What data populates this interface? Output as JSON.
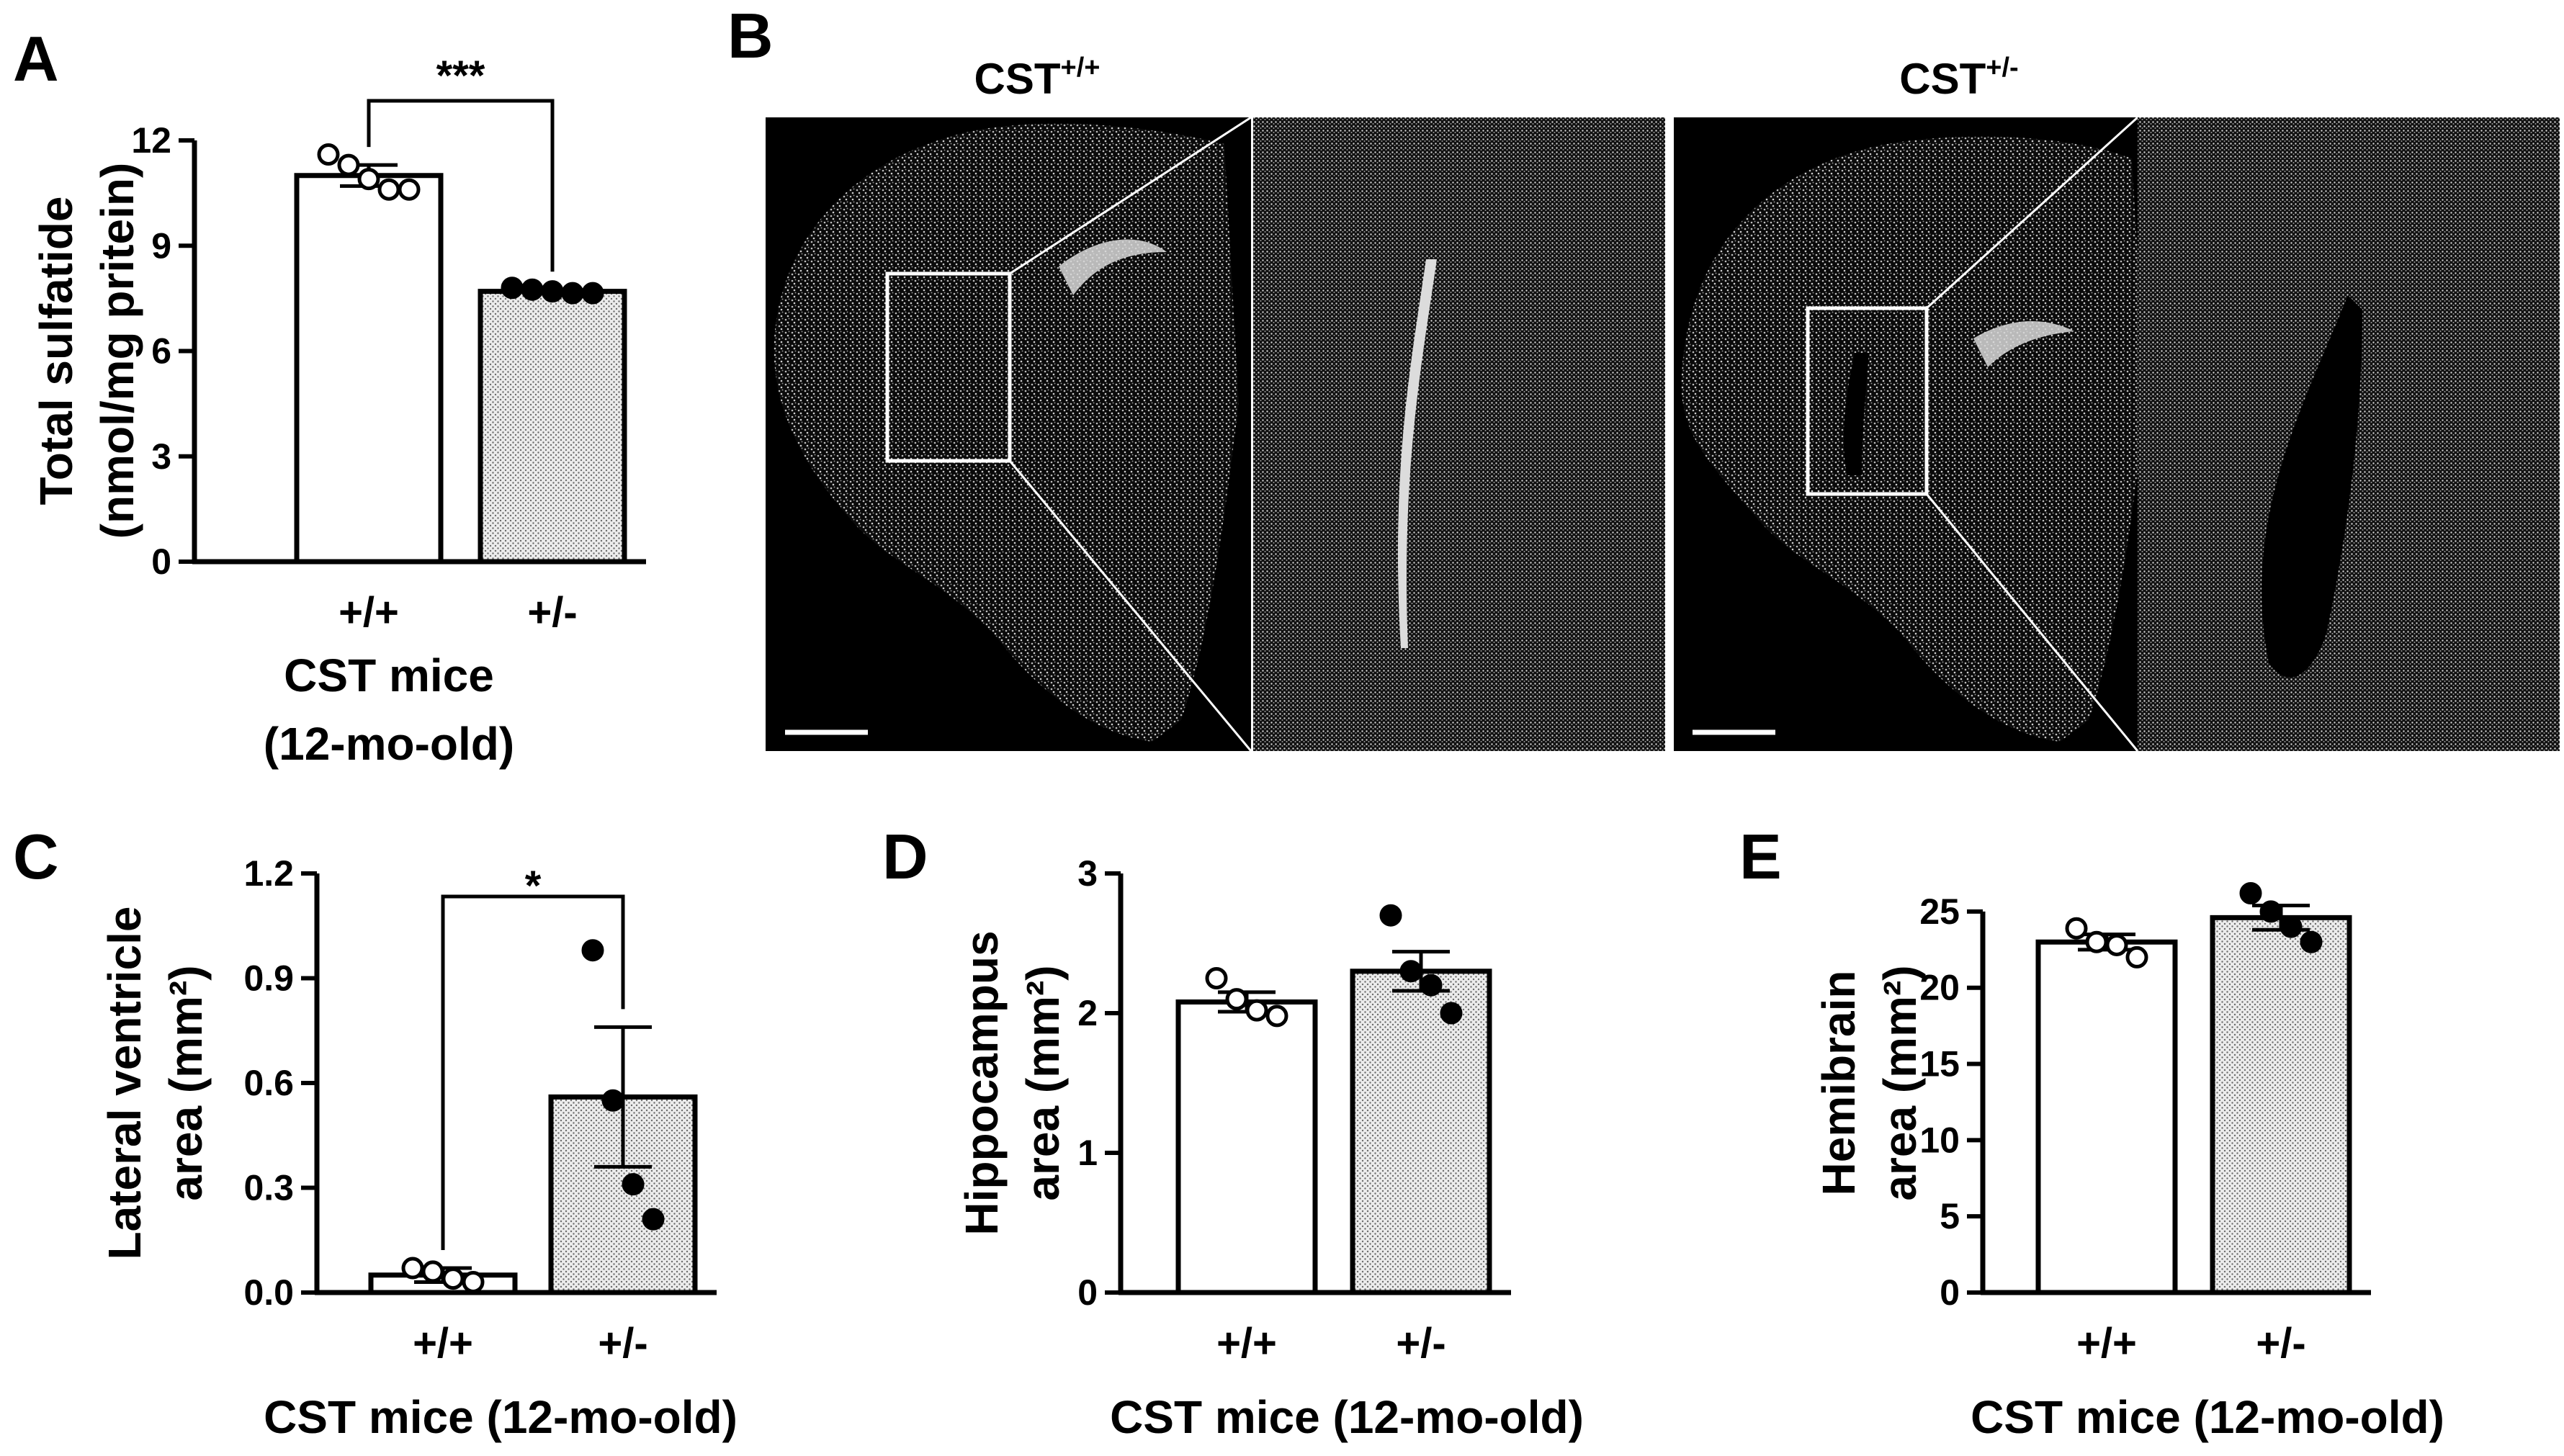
{
  "panel_letters": {
    "a": "A",
    "b": "B",
    "c": "C",
    "d": "D",
    "e": "E"
  },
  "micrograph": {
    "genotype_left_base": "CST",
    "genotype_left_sup": "+/+",
    "genotype_right_base": "CST",
    "genotype_right_sup": "+/-"
  },
  "colors": {
    "bar_outline": "#000000",
    "bar_fill_wt": "#ffffff",
    "bar_fill_het": "#d8d8d8",
    "tissue_bg": "#000000"
  },
  "chart_data": [
    {
      "panel": "A",
      "type": "bar",
      "categories": [
        "+/+",
        "+/-"
      ],
      "values": [
        11.0,
        7.7
      ],
      "sem": [
        0.3,
        0.05
      ],
      "points": [
        [
          11.6,
          11.3,
          10.9,
          10.6,
          10.6
        ],
        [
          7.8,
          7.75,
          7.7,
          7.65,
          7.65
        ]
      ],
      "point_style": [
        "open",
        "filled"
      ],
      "ylabel_line1": "Total sulfatide",
      "ylabel_line2": "(nmol/mg pritein)",
      "xlabel_line1": "CST mice",
      "xlabel_line2": "(12-mo-old)",
      "ylim": [
        0,
        12
      ],
      "yticks": [
        "0",
        "3",
        "6",
        "9",
        "12"
      ],
      "significance": "***"
    },
    {
      "panel": "C",
      "type": "bar",
      "categories": [
        "+/+",
        "+/-"
      ],
      "values": [
        0.05,
        0.56
      ],
      "sem": [
        0.02,
        0.2
      ],
      "points": [
        [
          0.07,
          0.06,
          0.04,
          0.03
        ],
        [
          0.98,
          0.55,
          0.31,
          0.21
        ]
      ],
      "point_style": [
        "open",
        "filled"
      ],
      "ylabel_line1": "Lateral ventricle",
      "ylabel_line2": "area (mm²)",
      "xlabel_line1": "CST mice (12-mo-old)",
      "xlabel_line2": "",
      "ylim": [
        0,
        1.2
      ],
      "yticks": [
        "0.0",
        "0.3",
        "0.6",
        "0.9",
        "1.2"
      ],
      "significance": "*"
    },
    {
      "panel": "D",
      "type": "bar",
      "categories": [
        "+/+",
        "+/-"
      ],
      "values": [
        2.08,
        2.3
      ],
      "sem": [
        0.07,
        0.14
      ],
      "points": [
        [
          2.25,
          2.1,
          2.02,
          1.98
        ],
        [
          2.7,
          2.3,
          2.2,
          2.0
        ]
      ],
      "point_style": [
        "open",
        "filled"
      ],
      "ylabel_line1": "Hippocampus",
      "ylabel_line2": "area (mm²)",
      "xlabel_line1": "CST mice (12-mo-old)",
      "xlabel_line2": "",
      "ylim": [
        0,
        3
      ],
      "yticks": [
        "0",
        "1",
        "2",
        "3"
      ],
      "significance": ""
    },
    {
      "panel": "E",
      "type": "bar",
      "categories": [
        "+/+",
        "+/-"
      ],
      "values": [
        23.0,
        24.6
      ],
      "sem": [
        0.5,
        0.8
      ],
      "points": [
        [
          23.9,
          23.0,
          22.8,
          22.0
        ],
        [
          26.2,
          25.0,
          24.0,
          23.0
        ]
      ],
      "point_style": [
        "open",
        "filled"
      ],
      "ylabel_line1": "Hemibrain",
      "ylabel_line2": "area (mm²)",
      "xlabel_line1": "CST mice (12-mo-old)",
      "xlabel_line2": "",
      "ylim": [
        0,
        27.5
      ],
      "yticks": [
        "0",
        "5",
        "10",
        "15",
        "20",
        "25"
      ],
      "significance": ""
    }
  ]
}
